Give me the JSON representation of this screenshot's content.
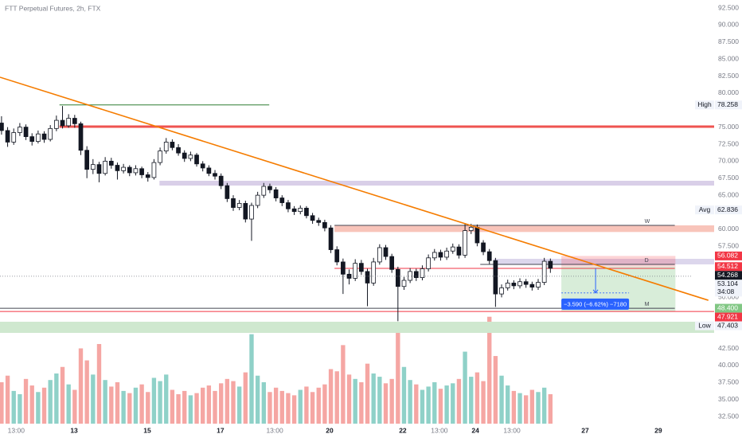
{
  "chart_data": {
    "type": "candlestick",
    "title": "FTT Perpetual Futures, 2h, FTX",
    "xlim": [
      -0.25,
      116.85
    ],
    "ylim": [
      31.45,
      93.67
    ],
    "y2lim": [
      0,
      100
    ],
    "grid": false,
    "up_color": "#ffffff",
    "down_color": "#131722",
    "volume_up_color": "#8fd1c8",
    "volume_down_color": "#f5a6a3",
    "xticks": [
      {
        "value": 2.4,
        "label": "13:00"
      },
      {
        "value": 11.9,
        "label": "13"
      },
      {
        "value": 23.9,
        "label": "15"
      },
      {
        "value": 35.9,
        "label": "17"
      },
      {
        "value": 44.8,
        "label": "13:00"
      },
      {
        "value": 53.8,
        "label": "20"
      },
      {
        "value": 65.8,
        "label": "22"
      },
      {
        "value": 71.8,
        "label": "13:00"
      },
      {
        "value": 77.7,
        "label": "24"
      },
      {
        "value": 83.7,
        "label": "13:00"
      },
      {
        "value": 95.7,
        "label": "27"
      },
      {
        "value": 107.7,
        "label": "29"
      }
    ],
    "yticks": [
      {
        "value": 92.5,
        "label": "92.500"
      },
      {
        "value": 90,
        "label": "90.000"
      },
      {
        "value": 87.5,
        "label": "87.500"
      },
      {
        "value": 85,
        "label": "85.000"
      },
      {
        "value": 82.5,
        "label": "82.500"
      },
      {
        "value": 80,
        "label": "80.000"
      },
      {
        "value": 75,
        "label": "75.000"
      },
      {
        "value": 72.5,
        "label": "72.500"
      },
      {
        "value": 70,
        "label": "70.000"
      },
      {
        "value": 67.5,
        "label": "67.500"
      },
      {
        "value": 65,
        "label": "65.000"
      },
      {
        "value": 60,
        "label": "60.000"
      },
      {
        "value": 57.5,
        "label": "57.500"
      },
      {
        "value": 50,
        "label": "50.000"
      },
      {
        "value": 42.5,
        "label": "42.500"
      },
      {
        "value": 40,
        "label": "40.000"
      },
      {
        "value": 37.5,
        "label": "37.500"
      },
      {
        "value": 35,
        "label": "35.000"
      },
      {
        "value": 32.5,
        "label": "32.500"
      }
    ],
    "ohlc": [
      [
        75.6,
        76.6,
        73.9,
        74.5
      ],
      [
        74.5,
        75.0,
        72.1,
        72.8
      ],
      [
        72.8,
        74.8,
        72.4,
        74.2
      ],
      [
        74.2,
        75.6,
        73.7,
        75.0
      ],
      [
        75.0,
        75.4,
        73.1,
        73.6
      ],
      [
        73.6,
        74.1,
        72.3,
        72.9
      ],
      [
        72.9,
        74.5,
        72.6,
        74.0
      ],
      [
        74.0,
        74.4,
        72.7,
        73.2
      ],
      [
        73.2,
        75.3,
        72.9,
        74.8
      ],
      [
        74.8,
        76.7,
        74.4,
        76.0
      ],
      [
        76.0,
        78.1,
        74.8,
        75.2
      ],
      [
        75.2,
        76.9,
        74.9,
        76.3
      ],
      [
        76.3,
        76.8,
        74.9,
        75.5
      ],
      [
        75.5,
        75.8,
        70.9,
        71.6
      ],
      [
        71.6,
        72.2,
        67.5,
        68.8
      ],
      [
        68.8,
        70.3,
        68.1,
        69.5
      ],
      [
        69.5,
        69.9,
        66.9,
        68.2
      ],
      [
        68.2,
        70.6,
        67.9,
        70.0
      ],
      [
        70.0,
        70.5,
        68.9,
        69.4
      ],
      [
        69.4,
        69.8,
        67.3,
        68.6
      ],
      [
        68.6,
        69.6,
        68.2,
        69.1
      ],
      [
        69.1,
        69.4,
        67.8,
        68.3
      ],
      [
        68.3,
        69.4,
        67.9,
        68.9
      ],
      [
        68.9,
        69.2,
        67.5,
        68.0
      ],
      [
        68.0,
        68.4,
        67.0,
        67.6
      ],
      [
        67.6,
        70.3,
        67.3,
        69.8
      ],
      [
        69.8,
        72.0,
        69.4,
        71.5
      ],
      [
        71.5,
        73.4,
        71.1,
        72.8
      ],
      [
        72.8,
        73.2,
        71.6,
        72.0
      ],
      [
        72.0,
        72.5,
        70.8,
        71.2
      ],
      [
        71.2,
        71.6,
        69.9,
        70.4
      ],
      [
        70.4,
        71.4,
        70.0,
        70.9
      ],
      [
        70.9,
        71.2,
        69.2,
        69.6
      ],
      [
        69.6,
        70.0,
        68.5,
        69.0
      ],
      [
        69.0,
        69.4,
        67.8,
        68.2
      ],
      [
        68.2,
        68.7,
        67.3,
        67.8
      ],
      [
        67.8,
        68.2,
        65.9,
        66.4
      ],
      [
        66.4,
        66.8,
        64.0,
        64.5
      ],
      [
        64.5,
        65.0,
        62.7,
        63.2
      ],
      [
        63.2,
        64.3,
        62.8,
        63.8
      ],
      [
        63.8,
        64.2,
        61.0,
        61.5
      ],
      [
        61.5,
        63.9,
        58.3,
        63.5
      ],
      [
        63.5,
        65.5,
        63.1,
        65.0
      ],
      [
        65.0,
        66.8,
        64.6,
        66.3
      ],
      [
        66.3,
        66.7,
        65.3,
        65.8
      ],
      [
        65.8,
        66.2,
        64.1,
        64.6
      ],
      [
        64.6,
        65.0,
        63.4,
        63.9
      ],
      [
        63.9,
        64.3,
        62.5,
        63.0
      ],
      [
        63.0,
        63.4,
        62.1,
        62.6
      ],
      [
        62.6,
        63.5,
        62.2,
        63.1
      ],
      [
        63.1,
        63.4,
        61.6,
        62.0
      ],
      [
        62.0,
        62.4,
        60.8,
        61.3
      ],
      [
        61.3,
        61.7,
        60.5,
        61.0
      ],
      [
        61.0,
        61.4,
        59.7,
        60.2
      ],
      [
        60.2,
        60.6,
        56.5,
        57.0
      ],
      [
        57.0,
        57.5,
        54.7,
        55.2
      ],
      [
        55.2,
        55.7,
        50.5,
        53.4
      ],
      [
        53.4,
        54.1,
        51.9,
        52.8
      ],
      [
        52.8,
        55.6,
        52.4,
        55.0
      ],
      [
        55.0,
        55.5,
        53.3,
        53.8
      ],
      [
        53.8,
        54.2,
        48.7,
        52.1
      ],
      [
        52.1,
        55.8,
        51.7,
        55.2
      ],
      [
        55.2,
        57.8,
        54.8,
        57.3
      ],
      [
        57.3,
        57.7,
        55.5,
        56.0
      ],
      [
        56.0,
        56.4,
        53.6,
        54.1
      ],
      [
        54.1,
        54.5,
        46.5,
        51.6
      ],
      [
        51.6,
        53.0,
        51.1,
        52.5
      ],
      [
        52.5,
        54.3,
        52.1,
        53.8
      ],
      [
        53.8,
        54.2,
        52.4,
        52.9
      ],
      [
        52.9,
        54.7,
        52.5,
        54.2
      ],
      [
        54.2,
        56.3,
        53.8,
        55.8
      ],
      [
        55.8,
        57.1,
        55.4,
        56.6
      ],
      [
        56.6,
        57.0,
        55.4,
        55.9
      ],
      [
        55.9,
        57.3,
        55.5,
        56.8
      ],
      [
        56.8,
        57.9,
        56.4,
        57.4
      ],
      [
        57.4,
        57.8,
        55.7,
        56.2
      ],
      [
        56.2,
        60.9,
        55.8,
        59.8
      ],
      [
        59.8,
        60.8,
        59.3,
        60.3
      ],
      [
        60.3,
        60.7,
        57.5,
        58.0
      ],
      [
        58.0,
        58.4,
        56.2,
        56.7
      ],
      [
        56.7,
        57.1,
        54.9,
        55.4
      ],
      [
        55.4,
        55.8,
        48.6,
        50.5
      ],
      [
        50.5,
        51.9,
        50.0,
        51.4
      ],
      [
        51.4,
        52.6,
        51.0,
        52.1
      ],
      [
        52.1,
        52.5,
        51.2,
        51.7
      ],
      [
        51.7,
        52.8,
        51.3,
        52.3
      ],
      [
        52.3,
        52.7,
        51.4,
        51.9
      ],
      [
        51.9,
        52.3,
        51.0,
        51.5
      ],
      [
        51.5,
        52.7,
        51.1,
        52.2
      ],
      [
        52.2,
        55.8,
        51.8,
        55.3
      ],
      [
        55.3,
        55.7,
        53.6,
        54.268
      ]
    ],
    "volume": [
      38,
      44,
      30,
      27,
      41,
      35,
      29,
      33,
      40,
      46,
      52,
      36,
      31,
      69,
      58,
      45,
      73,
      40,
      34,
      38,
      30,
      28,
      33,
      36,
      29,
      42,
      39,
      45,
      31,
      27,
      30,
      26,
      28,
      33,
      35,
      30,
      37,
      41,
      39,
      34,
      47,
      82,
      44,
      38,
      29,
      33,
      30,
      28,
      26,
      31,
      34,
      29,
      33,
      36,
      50,
      48,
      72,
      45,
      41,
      38,
      55,
      46,
      43,
      37,
      41,
      88,
      52,
      40,
      36,
      31,
      34,
      38,
      32,
      35,
      37,
      41,
      66,
      43,
      47,
      39,
      98,
      62,
      44,
      35,
      30,
      28,
      26,
      31,
      29,
      33,
      27
    ],
    "bands": [
      {
        "range": [
          66.42,
          67.12
        ],
        "x": [
          25.9,
          116.85
        ],
        "color": "#d9cfe8"
      },
      {
        "range": [
          59.6,
          60.57
        ],
        "x": [
          54.6,
          116.85
        ],
        "color": "#f8c4ba"
      },
      {
        "range": [
          54.84,
          55.66
        ],
        "x": [
          80.7,
          116.85
        ],
        "color": "#dcd6ec"
      },
      {
        "range": [
          44.78,
          46.42
        ],
        "x": [
          -0.25,
          116.85
        ],
        "color": "#cfe8cf"
      }
    ],
    "levels": [
      {
        "value": 78.258,
        "x": [
          9.5,
          43.9
        ],
        "color": "#2e7d32",
        "width": 1
      },
      {
        "value": 75.07,
        "x": [
          9.5,
          116.85
        ],
        "color": "#ef5350",
        "width": 3
      },
      {
        "value": 60.57,
        "x": [
          54.6,
          110.4
        ],
        "color": "#434651",
        "width": 1,
        "label": "W"
      },
      {
        "value": 54.84,
        "x": [
          78.5,
          110.4
        ],
        "color": "#434651",
        "width": 1,
        "label": "D"
      },
      {
        "value": 54.25,
        "x": [
          54.6,
          110.4
        ],
        "color": "#f23645",
        "width": 1
      },
      {
        "value": 48.4,
        "x": [
          -0.25,
          110.4
        ],
        "color": "#434651",
        "width": 1,
        "label": "M"
      },
      {
        "value": 47.921,
        "x": [
          -0.25,
          116.85
        ],
        "color": "#f23645",
        "width": 1
      }
    ],
    "trendline": {
      "x": [
        -0.25,
        115.9
      ],
      "y": [
        82.33,
        49.57
      ],
      "color": "#f57c00"
    },
    "position": {
      "entry": 54.512,
      "stop": 56.082,
      "target": 47.921,
      "x": [
        91.8,
        110.5
      ],
      "label": "−3.590 (−6.62%) −7180"
    },
    "markers": [
      {
        "name": "High",
        "value": 78.258,
        "bg": "#f0f3fa",
        "fg": "#131722"
      },
      {
        "name": "Avg",
        "value": 62.836,
        "bg": "#f0f3fa",
        "fg": "#131722"
      },
      {
        "value": 56.082,
        "bg": "#f23645",
        "fg": "#ffffff"
      },
      {
        "value": 54.512,
        "bg": "#f23645",
        "fg": "#ffffff"
      },
      {
        "value": 54.268,
        "bg": "#131722",
        "fg": "#ffffff"
      },
      {
        "value": 53.104,
        "countdown": "34:08",
        "bg": "#f0f3fa",
        "fg": "#131722",
        "dotted": true
      },
      {
        "value": 48.4,
        "value_label": "48.400",
        "bg": "#81c784",
        "fg": "#ffffff"
      },
      {
        "value": 47.921,
        "bg": "#f23645",
        "fg": "#ffffff"
      },
      {
        "name": "Low",
        "value": 47.403,
        "bg": "#f0f3fa",
        "fg": "#131722"
      }
    ]
  }
}
